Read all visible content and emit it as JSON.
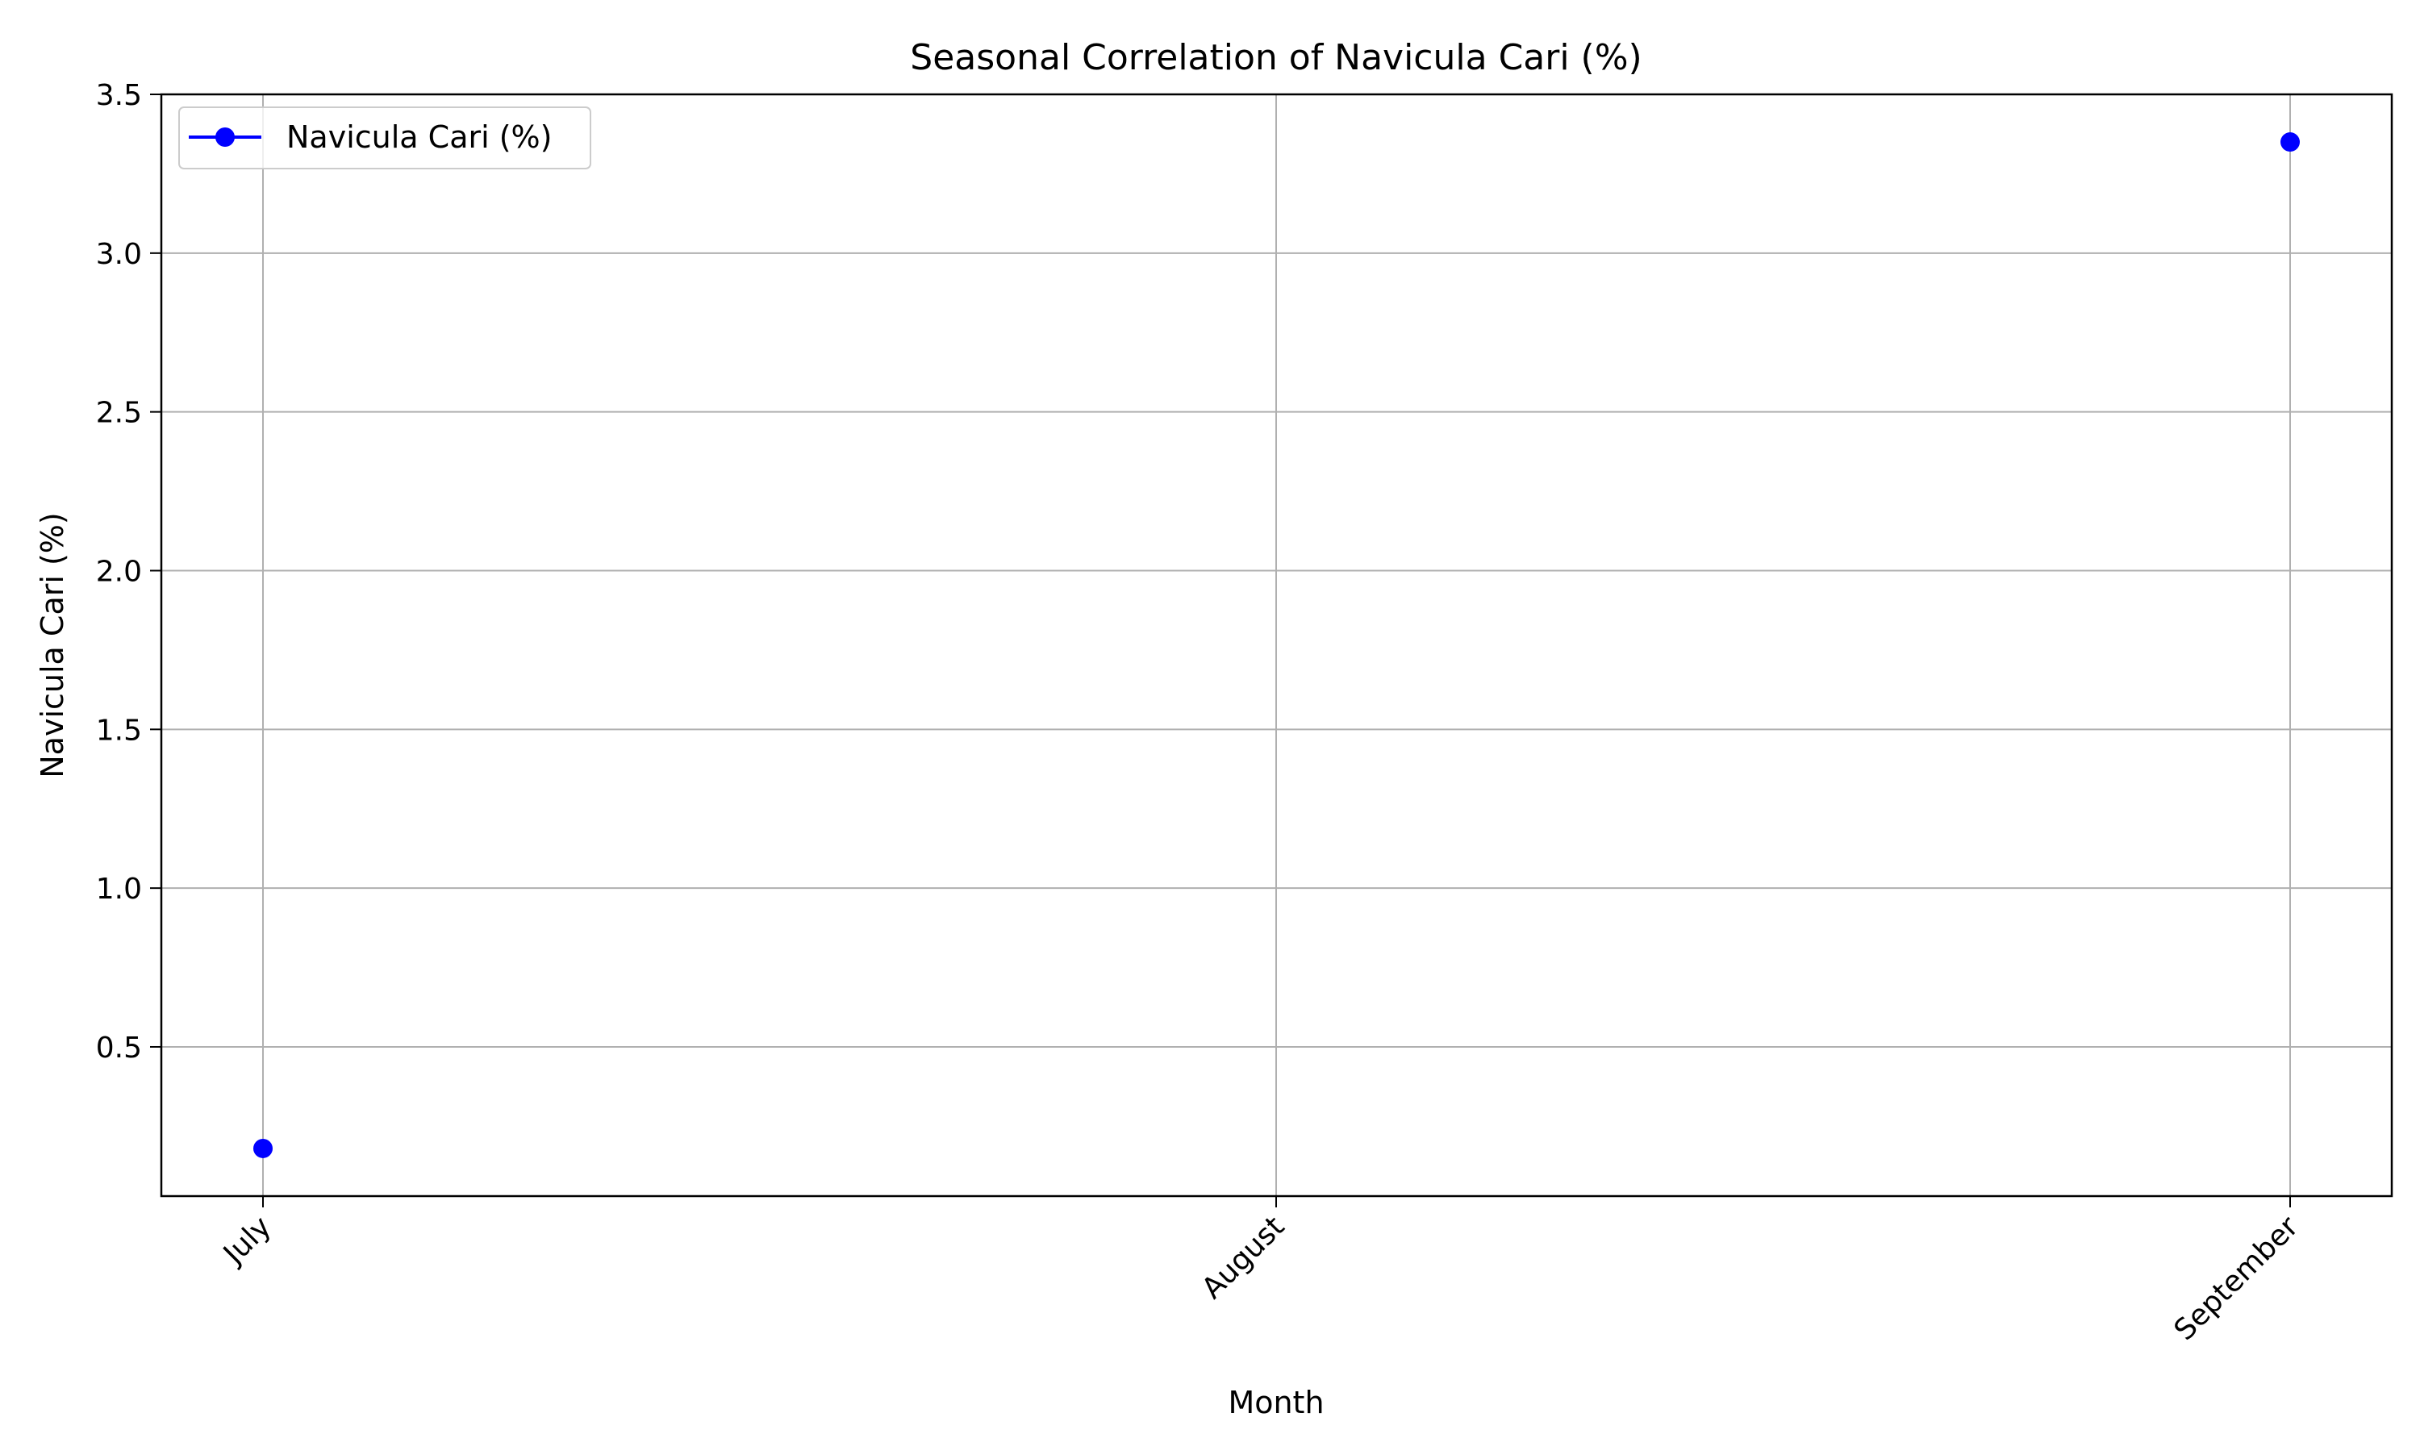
{
  "chart_data": {
    "type": "line",
    "title": "Seasonal Correlation of Navicula Cari (%)",
    "xlabel": "Month",
    "ylabel": "Navicula Cari (%)",
    "categories": [
      "July",
      "August",
      "September"
    ],
    "series": [
      {
        "name": "Navicula Cari (%)",
        "color": "#0000ff",
        "marker": "circle",
        "points": [
          {
            "x": "July",
            "y": 0.18
          },
          {
            "x": "September",
            "y": 3.35
          }
        ]
      }
    ],
    "ylim": [
      0.03,
      3.5
    ],
    "yticks": [
      0.5,
      1.0,
      1.5,
      2.0,
      2.5,
      3.0,
      3.5
    ],
    "ytick_labels": [
      "0.5",
      "1.0",
      "1.5",
      "2.0",
      "2.5",
      "3.0",
      "3.5"
    ],
    "xtick_rotation": -45,
    "grid": true,
    "legend_position": "upper left"
  }
}
